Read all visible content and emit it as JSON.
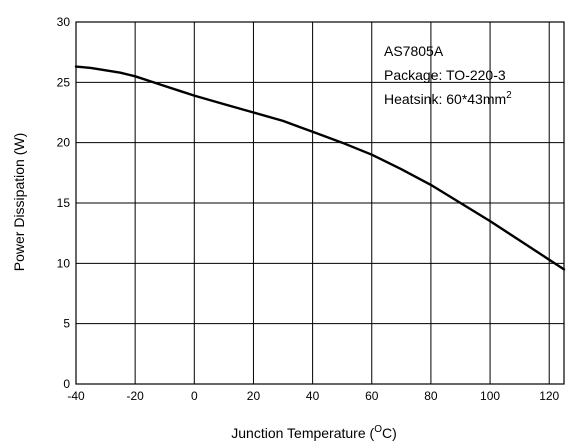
{
  "chart_data": {
    "type": "line",
    "title": "",
    "xlabel": "Junction Temperature (",
    "xlabel_sup": "O",
    "xlabel_suffix": "C)",
    "ylabel": "Power Dissipation (W)",
    "xlim": [
      -40,
      125
    ],
    "ylim": [
      0,
      30
    ],
    "x_ticks": [
      -40,
      -20,
      0,
      20,
      40,
      60,
      80,
      100,
      120
    ],
    "y_ticks": [
      0,
      5,
      10,
      15,
      20,
      25,
      30
    ],
    "grid": true,
    "annotation": {
      "line1": "AS7805A",
      "line2": "Package: TO-220-3",
      "line3": "Heatsink: 60*43mm",
      "line3_sup": "2"
    },
    "series": [
      {
        "x": [
          -40,
          -35,
          -30,
          -25,
          -20,
          -15,
          -10,
          -5,
          0,
          10,
          20,
          30,
          40,
          50,
          60,
          70,
          80,
          90,
          100,
          110,
          120,
          125
        ],
        "y": [
          26.3,
          26.2,
          26.0,
          25.8,
          25.5,
          25.1,
          24.7,
          24.3,
          23.9,
          23.2,
          22.5,
          21.8,
          20.9,
          20.0,
          19.0,
          17.8,
          16.5,
          15.0,
          13.5,
          11.9,
          10.3,
          9.5
        ]
      }
    ]
  }
}
